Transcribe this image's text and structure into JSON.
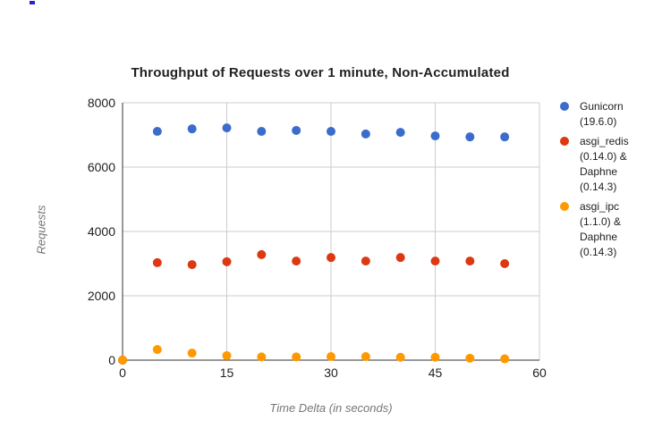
{
  "chart_data": {
    "type": "scatter",
    "title": "Throughput of Requests over 1 minute, Non-Accumulated",
    "xlabel": "Time Delta (in seconds)",
    "ylabel": "Requests",
    "xlim": [
      0,
      60
    ],
    "ylim": [
      0,
      8000
    ],
    "x_ticks": [
      0,
      15,
      30,
      45,
      60
    ],
    "y_ticks": [
      0,
      2000,
      4000,
      6000,
      8000
    ],
    "grid": true,
    "legend_position": "right",
    "x": [
      0,
      5,
      10,
      15,
      20,
      25,
      30,
      35,
      40,
      45,
      50,
      55
    ],
    "series": [
      {
        "name": "Gunicorn (19.6.0)",
        "color": "#3B6CCC",
        "values": [
          0,
          7110,
          7190,
          7220,
          7110,
          7140,
          7110,
          7030,
          7080,
          6970,
          6940,
          6940
        ]
      },
      {
        "name": "asgi_redis (0.14.0) & Daphne (0.14.3)",
        "color": "#DC3912",
        "values": [
          0,
          3030,
          2970,
          3060,
          3280,
          3080,
          3190,
          3080,
          3190,
          3080,
          3080,
          3000
        ]
      },
      {
        "name": "asgi_ipc (1.1.0) & Daphne (0.14.3)",
        "color": "#FF9900",
        "values": [
          0,
          330,
          220,
          140,
          100,
          100,
          110,
          110,
          90,
          90,
          60,
          40
        ]
      }
    ],
    "colors": {
      "gridline": "#cccccc",
      "axis": "#333333",
      "tick_label": "#212121"
    }
  }
}
